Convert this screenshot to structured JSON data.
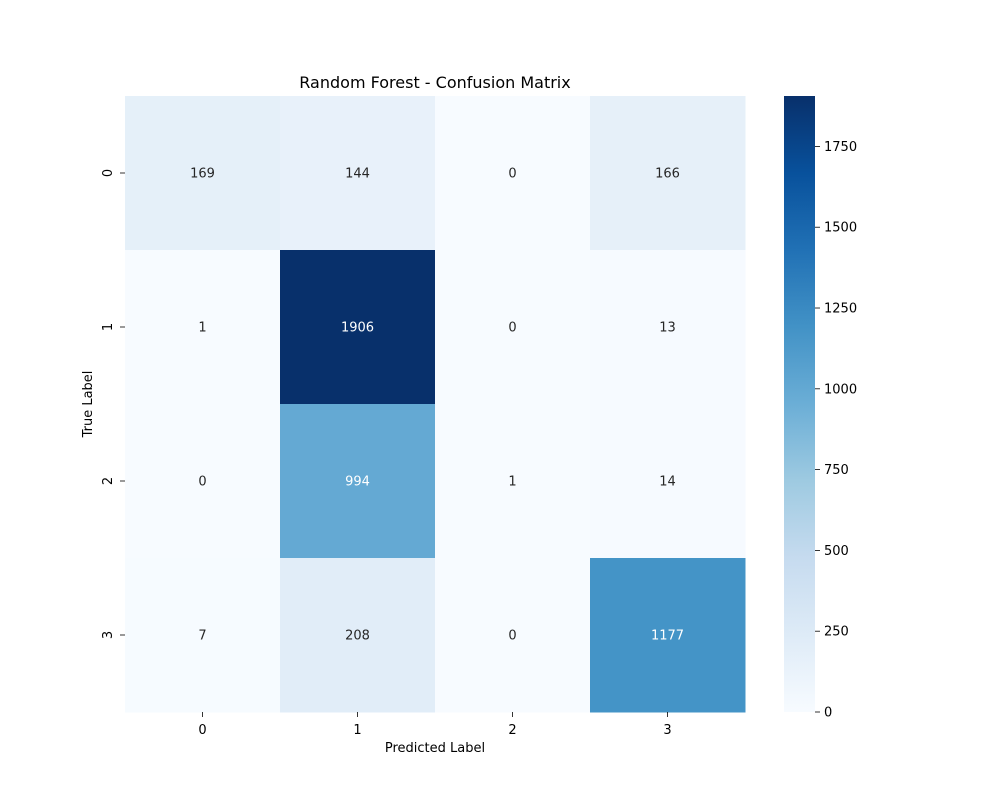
{
  "chart_data": {
    "type": "heatmap",
    "title": "Random Forest - Confusion Matrix",
    "xlabel": "Predicted Label",
    "ylabel": "True Label",
    "x_categories": [
      "0",
      "1",
      "2",
      "3"
    ],
    "y_categories": [
      "0",
      "1",
      "2",
      "3"
    ],
    "values": [
      [
        169,
        144,
        0,
        166
      ],
      [
        1,
        1906,
        0,
        13
      ],
      [
        0,
        994,
        1,
        14
      ],
      [
        7,
        208,
        0,
        1177
      ]
    ],
    "colormap": "Blues",
    "colorbar": {
      "range": [
        0,
        1906
      ],
      "ticks": [
        0,
        250,
        500,
        750,
        1000,
        1250,
        1500,
        1750
      ]
    },
    "annotation_colors": {
      "dark": "#262626",
      "light": "#ffffff"
    }
  }
}
